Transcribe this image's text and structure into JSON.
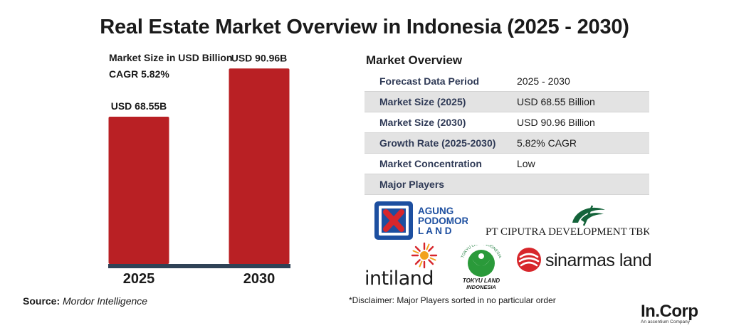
{
  "title": "Real Estate Market Overview in Indonesia (2025 - 2030)",
  "chart_data": {
    "type": "bar",
    "subtitle_lines": [
      "Market Size in USD Billion",
      "CAGR 5.82%"
    ],
    "categories": [
      "2025",
      "2030"
    ],
    "values": [
      68.55,
      90.96
    ],
    "data_labels": [
      "USD 68.55B",
      "USD 90.96B"
    ],
    "ylim": [
      0,
      100
    ],
    "grid": false,
    "colors": {
      "bar": "#b92024",
      "baseline": "#2f4256"
    }
  },
  "source": {
    "label": "Source:",
    "value": "Mordor Intelligence"
  },
  "overview": {
    "title": "Market Overview",
    "rows": [
      {
        "key": "Forecast Data Period",
        "value": "2025 - 2030"
      },
      {
        "key": "Market Size (2025)",
        "value": "USD 68.55 Billion"
      },
      {
        "key": "Market Size (2030)",
        "value": "USD 90.96 Billion"
      },
      {
        "key": "Growth Rate (2025-2030)",
        "value": "5.82% CAGR"
      },
      {
        "key": "Market Concentration",
        "value": "Low"
      },
      {
        "key": "Major Players",
        "value": ""
      }
    ]
  },
  "players": {
    "agung": {
      "lines": [
        "AGUNG",
        "PODOMORO",
        "L A N D"
      ]
    },
    "ciputra": {
      "text": "PT CIPUTRA DEVELOPMENT TBK"
    },
    "intiland": {
      "text": "intiland"
    },
    "tokyu": {
      "top": "TOKYU LAND INDONESIA",
      "bottom": [
        "TOKYU LAND",
        "INDONESIA"
      ]
    },
    "sinarmas": {
      "text": "sinarmas land"
    }
  },
  "disclaimer": "*Disclaimer: Major Players sorted in no particular order",
  "brand": {
    "name": "In.Corp",
    "tagline": "An ascentium Company"
  },
  "colors": {
    "accent": "#b92024",
    "navy": "#2f3a56",
    "row_alt": "#e3e3e3"
  }
}
